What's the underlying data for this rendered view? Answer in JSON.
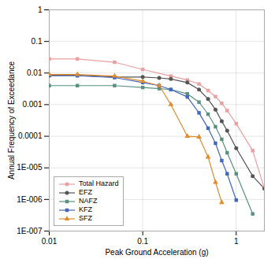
{
  "chart_data": {
    "type": "line",
    "xlabel": "Peak Ground Acceleration (g)",
    "ylabel": "Annual Frequency of Exceedance",
    "xlim": [
      0.01,
      2.0
    ],
    "ylim": [
      1e-07,
      1.0
    ],
    "xticks": [
      0.01,
      0.1,
      1
    ],
    "yticks": [
      {
        "value": 1e-07,
        "label": "1E-007"
      },
      {
        "value": 1e-06,
        "label": "1E-006"
      },
      {
        "value": 1e-05,
        "label": "1E-005"
      },
      0.0001,
      0.001,
      0.01,
      0.1,
      1
    ],
    "log": true,
    "grid": true,
    "legend": "lower left",
    "series": [
      {
        "name": "Total Hazard",
        "color": "#e8a0a0",
        "marker": "square",
        "x": [
          0.01,
          0.02,
          0.05,
          0.1,
          0.2,
          0.3,
          0.4,
          0.5,
          0.6,
          0.7,
          0.8,
          1.0,
          1.5,
          2.0
        ],
        "values": [
          0.028,
          0.028,
          0.022,
          0.013,
          0.008,
          0.006,
          0.0045,
          0.0028,
          0.0018,
          0.0011,
          0.00065,
          0.00025,
          3.5e-05,
          2.2e-06
        ]
      },
      {
        "name": "EFZ",
        "color": "#555555",
        "marker": "circle",
        "x": [
          0.01,
          0.02,
          0.05,
          0.1,
          0.15,
          0.2,
          0.3,
          0.4,
          0.5,
          0.6,
          0.7,
          0.8,
          1.0,
          1.5,
          2.0
        ],
        "values": [
          0.0085,
          0.0085,
          0.0075,
          0.0075,
          0.007,
          0.0065,
          0.005,
          0.003,
          0.0015,
          0.0007,
          0.0003,
          0.00015,
          4.2e-05,
          5.5e-06,
          2.2e-06
        ]
      },
      {
        "name": "NAFZ",
        "color": "#5a9080",
        "marker": "square",
        "x": [
          0.01,
          0.02,
          0.05,
          0.1,
          0.15,
          0.2,
          0.3,
          0.4,
          0.5,
          0.6,
          0.7,
          0.8,
          1.0,
          1.5
        ],
        "values": [
          0.004,
          0.004,
          0.004,
          0.0035,
          0.0032,
          0.003,
          0.0022,
          0.0012,
          0.0005,
          0.0002,
          8e-05,
          3e-05,
          6.5e-06,
          3.5e-07
        ]
      },
      {
        "name": "KFZ",
        "color": "#4466bb",
        "marker": "square",
        "x": [
          0.01,
          0.02,
          0.05,
          0.1,
          0.15,
          0.2,
          0.3,
          0.4,
          0.5,
          0.6,
          0.7,
          0.8,
          1.0
        ],
        "values": [
          0.0082,
          0.0082,
          0.0072,
          0.005,
          0.004,
          0.003,
          0.00175,
          0.00055,
          0.00018,
          6e-05,
          1.7e-05,
          6.5e-06,
          9.5e-07
        ]
      },
      {
        "name": "SFZ",
        "color": "#e08c30",
        "marker": "triangle",
        "x": [
          0.01,
          0.02,
          0.05,
          0.1,
          0.15,
          0.2,
          0.3,
          0.4,
          0.5,
          0.6,
          0.7
        ],
        "values": [
          0.009,
          0.009,
          0.008,
          0.0055,
          0.004,
          0.001,
          0.0001,
          9.5e-05,
          2.2e-05,
          3.5e-06,
          8e-07
        ]
      }
    ]
  }
}
